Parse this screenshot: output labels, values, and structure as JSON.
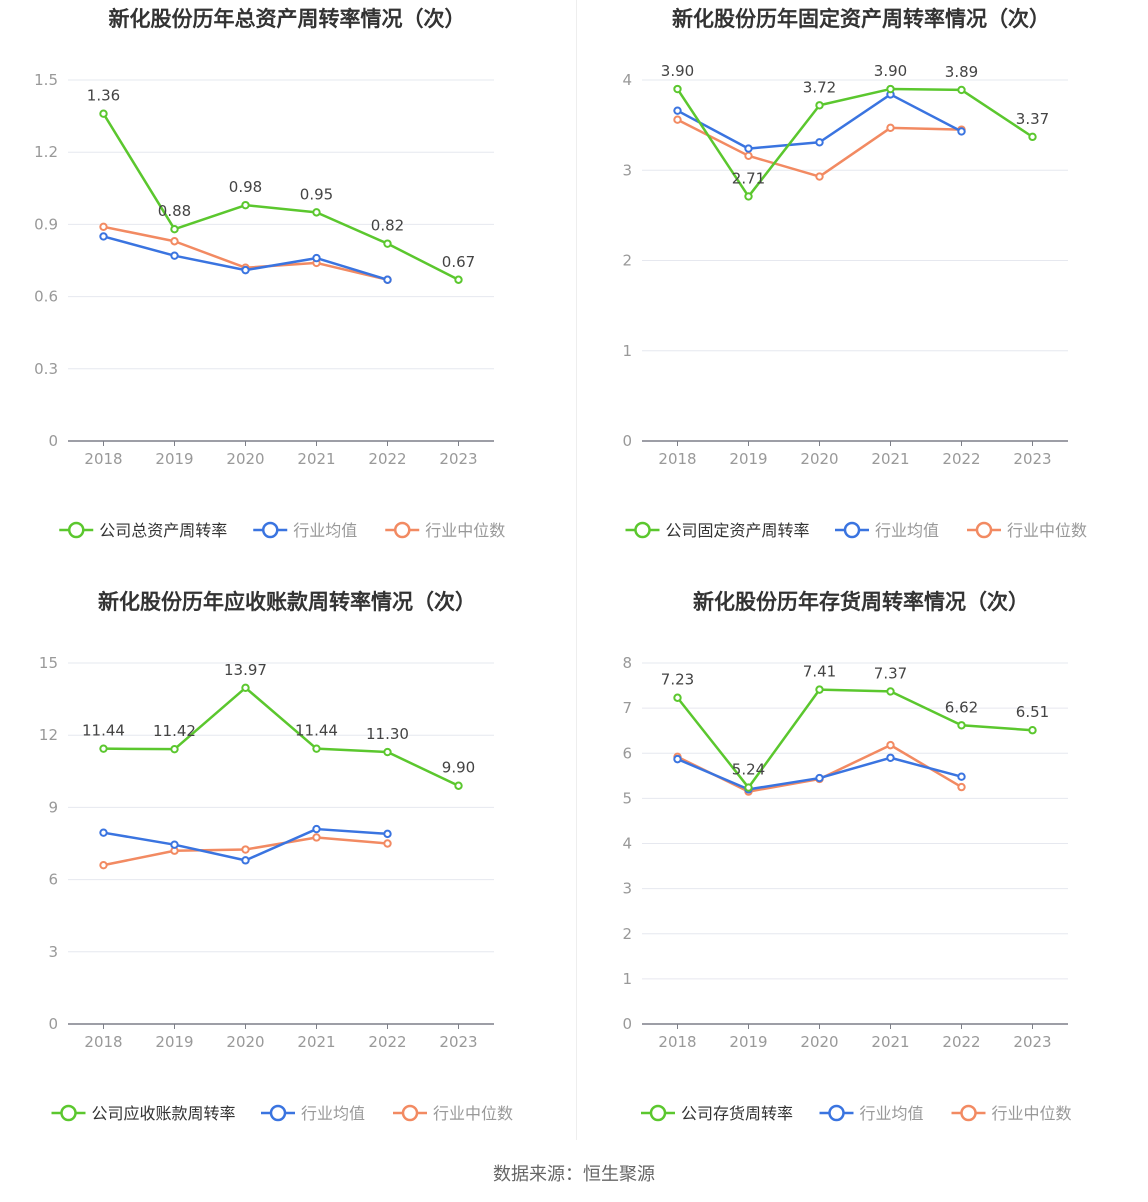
{
  "source": "数据来源：恒生聚源",
  "colors": {
    "company": "#5bc72e",
    "avg": "#3a74e0",
    "median": "#f28a62"
  },
  "chart_data": [
    {
      "type": "line",
      "title": "新化股份历年总资产周转率情况（次）",
      "categories": [
        "2018",
        "2019",
        "2020",
        "2021",
        "2022",
        "2023"
      ],
      "ylim": [
        0,
        1.5
      ],
      "yticks": [
        "0",
        "0.3",
        "0.6",
        "0.9",
        "1.2",
        "1.5"
      ],
      "series": [
        {
          "name": "公司总资产周转率",
          "values": [
            1.36,
            0.88,
            0.98,
            0.95,
            0.82,
            0.67
          ],
          "labels": [
            "1.36",
            "0.88",
            "0.98",
            "0.95",
            "0.82",
            "0.67"
          ]
        },
        {
          "name": "行业均值",
          "values": [
            0.85,
            0.77,
            0.71,
            0.76,
            0.67,
            null
          ]
        },
        {
          "name": "行业中位数",
          "values": [
            0.89,
            0.83,
            0.72,
            0.74,
            0.67,
            null
          ]
        }
      ]
    },
    {
      "type": "line",
      "title": "新化股份历年固定资产周转率情况（次）",
      "categories": [
        "2018",
        "2019",
        "2020",
        "2021",
        "2022",
        "2023"
      ],
      "ylim": [
        0,
        4
      ],
      "yticks": [
        "0",
        "1",
        "2",
        "3",
        "4"
      ],
      "series": [
        {
          "name": "公司固定资产周转率",
          "values": [
            3.9,
            2.71,
            3.72,
            3.9,
            3.89,
            3.37
          ],
          "labels": [
            "3.90",
            "2.71",
            "3.72",
            "3.90",
            "3.89",
            "3.37"
          ]
        },
        {
          "name": "行业均值",
          "values": [
            3.66,
            3.24,
            3.31,
            3.84,
            3.43,
            null
          ]
        },
        {
          "name": "行业中位数",
          "values": [
            3.56,
            3.16,
            2.93,
            3.47,
            3.45,
            null
          ]
        }
      ]
    },
    {
      "type": "line",
      "title": "新化股份历年应收账款周转率情况（次）",
      "categories": [
        "2018",
        "2019",
        "2020",
        "2021",
        "2022",
        "2023"
      ],
      "ylim": [
        0,
        15
      ],
      "yticks": [
        "0",
        "3",
        "6",
        "9",
        "12",
        "15"
      ],
      "series": [
        {
          "name": "公司应收账款周转率",
          "values": [
            11.44,
            11.42,
            13.97,
            11.44,
            11.3,
            9.9
          ],
          "labels": [
            "11.44",
            "11.42",
            "13.97",
            "11.44",
            "11.30",
            "9.90"
          ]
        },
        {
          "name": "行业均值",
          "values": [
            7.95,
            7.45,
            6.8,
            8.1,
            7.9,
            null
          ]
        },
        {
          "name": "行业中位数",
          "values": [
            6.6,
            7.2,
            7.25,
            7.75,
            7.5,
            null
          ]
        }
      ]
    },
    {
      "type": "line",
      "title": "新化股份历年存货周转率情况（次）",
      "categories": [
        "2018",
        "2019",
        "2020",
        "2021",
        "2022",
        "2023"
      ],
      "ylim": [
        0,
        8
      ],
      "yticks": [
        "0",
        "1",
        "2",
        "3",
        "4",
        "5",
        "6",
        "7",
        "8"
      ],
      "series": [
        {
          "name": "公司存货周转率",
          "values": [
            7.23,
            5.24,
            7.41,
            7.37,
            6.62,
            6.51
          ],
          "labels": [
            "7.23",
            "5.24",
            "7.41",
            "7.37",
            "6.62",
            "6.51"
          ]
        },
        {
          "name": "行业均值",
          "values": [
            5.87,
            5.2,
            5.45,
            5.9,
            5.48,
            null
          ]
        },
        {
          "name": "行业中位数",
          "values": [
            5.92,
            5.15,
            5.43,
            6.18,
            5.25,
            null
          ]
        }
      ]
    }
  ]
}
